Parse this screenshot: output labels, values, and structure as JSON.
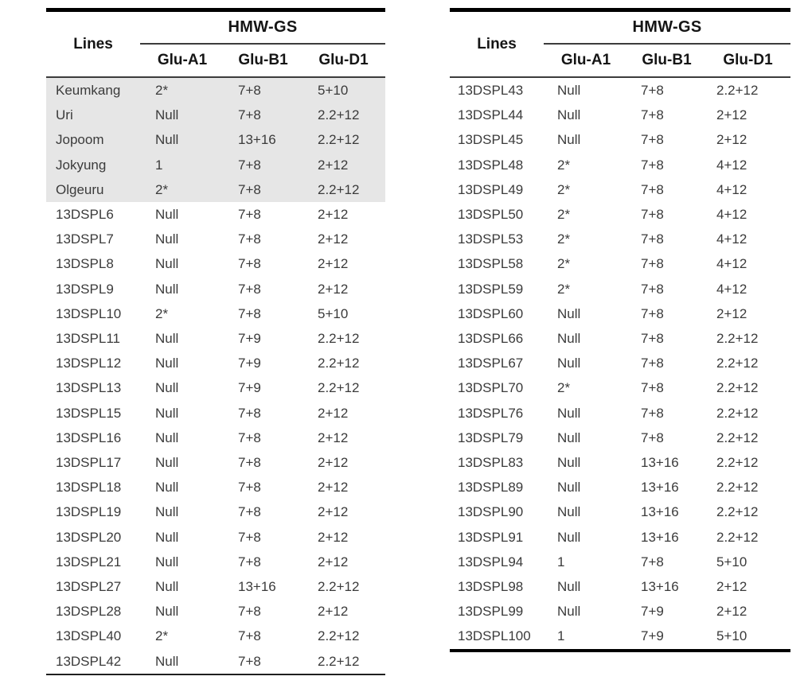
{
  "colors": {
    "page_background": "#ffffff",
    "thick_border": "#000000",
    "thin_border": "#3c3c3c",
    "shaded_row_bg": "#e6e6e6",
    "header_text": "#151515",
    "body_text": "#3b3b3b"
  },
  "header": {
    "lines": "Lines",
    "group": "HMW-GS",
    "columns": [
      "Glu-A1",
      "Glu-B1",
      "Glu-D1"
    ]
  },
  "tables": [
    {
      "name": "genotype-table-left",
      "shaded_rows": 5,
      "rows": [
        [
          "Keumkang",
          "2*",
          "7+8",
          "5+10"
        ],
        [
          "Uri",
          "Null",
          "7+8",
          "2.2+12"
        ],
        [
          "Jopoom",
          "Null",
          "13+16",
          "2.2+12"
        ],
        [
          "Jokyung",
          "1",
          "7+8",
          "2+12"
        ],
        [
          "Olgeuru",
          "2*",
          "7+8",
          "2.2+12"
        ],
        [
          "13DSPL6",
          "Null",
          "7+8",
          "2+12"
        ],
        [
          "13DSPL7",
          "Null",
          "7+8",
          "2+12"
        ],
        [
          "13DSPL8",
          "Null",
          "7+8",
          "2+12"
        ],
        [
          "13DSPL9",
          "Null",
          "7+8",
          "2+12"
        ],
        [
          "13DSPL10",
          "2*",
          "7+8",
          "5+10"
        ],
        [
          "13DSPL11",
          "Null",
          "7+9",
          "2.2+12"
        ],
        [
          "13DSPL12",
          "Null",
          "7+9",
          "2.2+12"
        ],
        [
          "13DSPL13",
          "Null",
          "7+9",
          "2.2+12"
        ],
        [
          "13DSPL15",
          "Null",
          "7+8",
          "2+12"
        ],
        [
          "13DSPL16",
          "Null",
          "7+8",
          "2+12"
        ],
        [
          "13DSPL17",
          "Null",
          "7+8",
          "2+12"
        ],
        [
          "13DSPL18",
          "Null",
          "7+8",
          "2+12"
        ],
        [
          "13DSPL19",
          "Null",
          "7+8",
          "2+12"
        ],
        [
          "13DSPL20",
          "Null",
          "7+8",
          "2+12"
        ],
        [
          "13DSPL21",
          "Null",
          "7+8",
          "2+12"
        ],
        [
          "13DSPL27",
          "Null",
          "13+16",
          "2.2+12"
        ],
        [
          "13DSPL28",
          "Null",
          "7+8",
          "2+12"
        ],
        [
          "13DSPL40",
          "2*",
          "7+8",
          "2.2+12"
        ],
        [
          "13DSPL42",
          "Null",
          "7+8",
          "2.2+12"
        ]
      ]
    },
    {
      "name": "genotype-table-right",
      "shaded_rows": 0,
      "rows": [
        [
          "13DSPL43",
          "Null",
          "7+8",
          "2.2+12"
        ],
        [
          "13DSPL44",
          "Null",
          "7+8",
          "2+12"
        ],
        [
          "13DSPL45",
          "Null",
          "7+8",
          "2+12"
        ],
        [
          "13DSPL48",
          "2*",
          "7+8",
          "4+12"
        ],
        [
          "13DSPL49",
          "2*",
          "7+8",
          "4+12"
        ],
        [
          "13DSPL50",
          "2*",
          "7+8",
          "4+12"
        ],
        [
          "13DSPL53",
          "2*",
          "7+8",
          "4+12"
        ],
        [
          "13DSPL58",
          "2*",
          "7+8",
          "4+12"
        ],
        [
          "13DSPL59",
          "2*",
          "7+8",
          "4+12"
        ],
        [
          "13DSPL60",
          "Null",
          "7+8",
          "2+12"
        ],
        [
          "13DSPL66",
          "Null",
          "7+8",
          "2.2+12"
        ],
        [
          "13DSPL67",
          "Null",
          "7+8",
          "2.2+12"
        ],
        [
          "13DSPL70",
          "2*",
          "7+8",
          "2.2+12"
        ],
        [
          "13DSPL76",
          "Null",
          "7+8",
          "2.2+12"
        ],
        [
          "13DSPL79",
          "Null",
          "7+8",
          "2.2+12"
        ],
        [
          "13DSPL83",
          "Null",
          "13+16",
          "2.2+12"
        ],
        [
          "13DSPL89",
          "Null",
          "13+16",
          "2.2+12"
        ],
        [
          "13DSPL90",
          "Null",
          "13+16",
          "2.2+12"
        ],
        [
          "13DSPL91",
          "Null",
          "13+16",
          "2.2+12"
        ],
        [
          "13DSPL94",
          "1",
          "7+8",
          "5+10"
        ],
        [
          "13DSPL98",
          "Null",
          "13+16",
          "2+12"
        ],
        [
          "13DSPL99",
          "Null",
          "7+9",
          "2+12"
        ],
        [
          "13DSPL100",
          "1",
          "7+9",
          "5+10"
        ]
      ]
    }
  ]
}
